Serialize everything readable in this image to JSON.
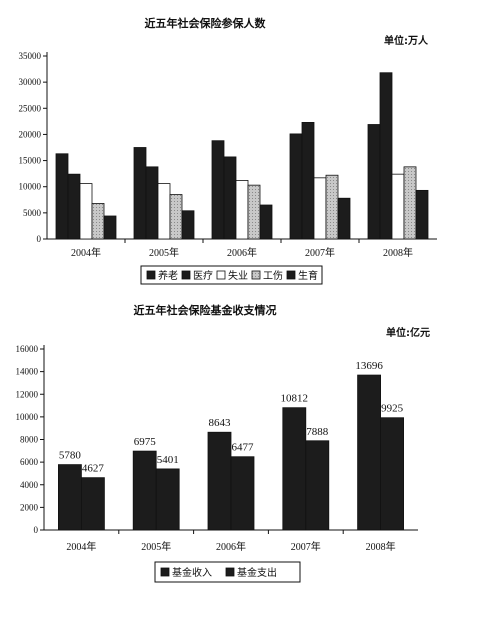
{
  "chart_data": [
    {
      "type": "bar",
      "title": "近五年社会保险参保人数",
      "unit_label": "单位:万人",
      "categories": [
        "2004年",
        "2005年",
        "2006年",
        "2007年",
        "2008年"
      ],
      "series": [
        {
          "name": "养老",
          "values": [
            16300,
            17500,
            18800,
            20100,
            21900
          ]
        },
        {
          "name": "医疗",
          "values": [
            12400,
            13800,
            15700,
            22300,
            31800
          ]
        },
        {
          "name": "失业",
          "values": [
            10600,
            10600,
            11200,
            11700,
            12400
          ]
        },
        {
          "name": "工伤",
          "values": [
            6800,
            8500,
            10300,
            12200,
            13800
          ]
        },
        {
          "name": "生育",
          "values": [
            4400,
            5400,
            6500,
            7800,
            9300
          ]
        }
      ],
      "yticks": [
        "0",
        "5000",
        "10000",
        "15000",
        "20000",
        "25000",
        "30000",
        "35000"
      ],
      "ylim": [
        0,
        35000
      ],
      "grid": false,
      "legend": "bottom",
      "colors": [
        "#1c1c1c",
        "#1c1c1c",
        "#ffffff",
        "#bdbdbd",
        "#1c1c1c"
      ]
    },
    {
      "type": "bar",
      "title": "近五年社会保险基金收支情况",
      "unit_label": "单位:亿元",
      "categories": [
        "2004年",
        "2005年",
        "2006年",
        "2007年",
        "2008年"
      ],
      "series": [
        {
          "name": "基金收入",
          "values": [
            5780,
            6975,
            8643,
            10812,
            13696
          ]
        },
        {
          "name": "基金支出",
          "values": [
            4627,
            5401,
            6477,
            7888,
            9925
          ]
        }
      ],
      "data_labels": {
        "income": [
          "5780",
          "6975",
          "8643",
          "10812",
          "13696"
        ],
        "expense": [
          "4627",
          "5401",
          "6477",
          "7888",
          "9925"
        ]
      },
      "yticks": [
        "0",
        "2000",
        "4000",
        "6000",
        "8000",
        "10000",
        "12000",
        "14000",
        "16000"
      ],
      "ylim": [
        0,
        16000
      ],
      "grid": false,
      "legend": "bottom",
      "colors": [
        "#1c1c1c",
        "#1c1c1c"
      ]
    }
  ]
}
